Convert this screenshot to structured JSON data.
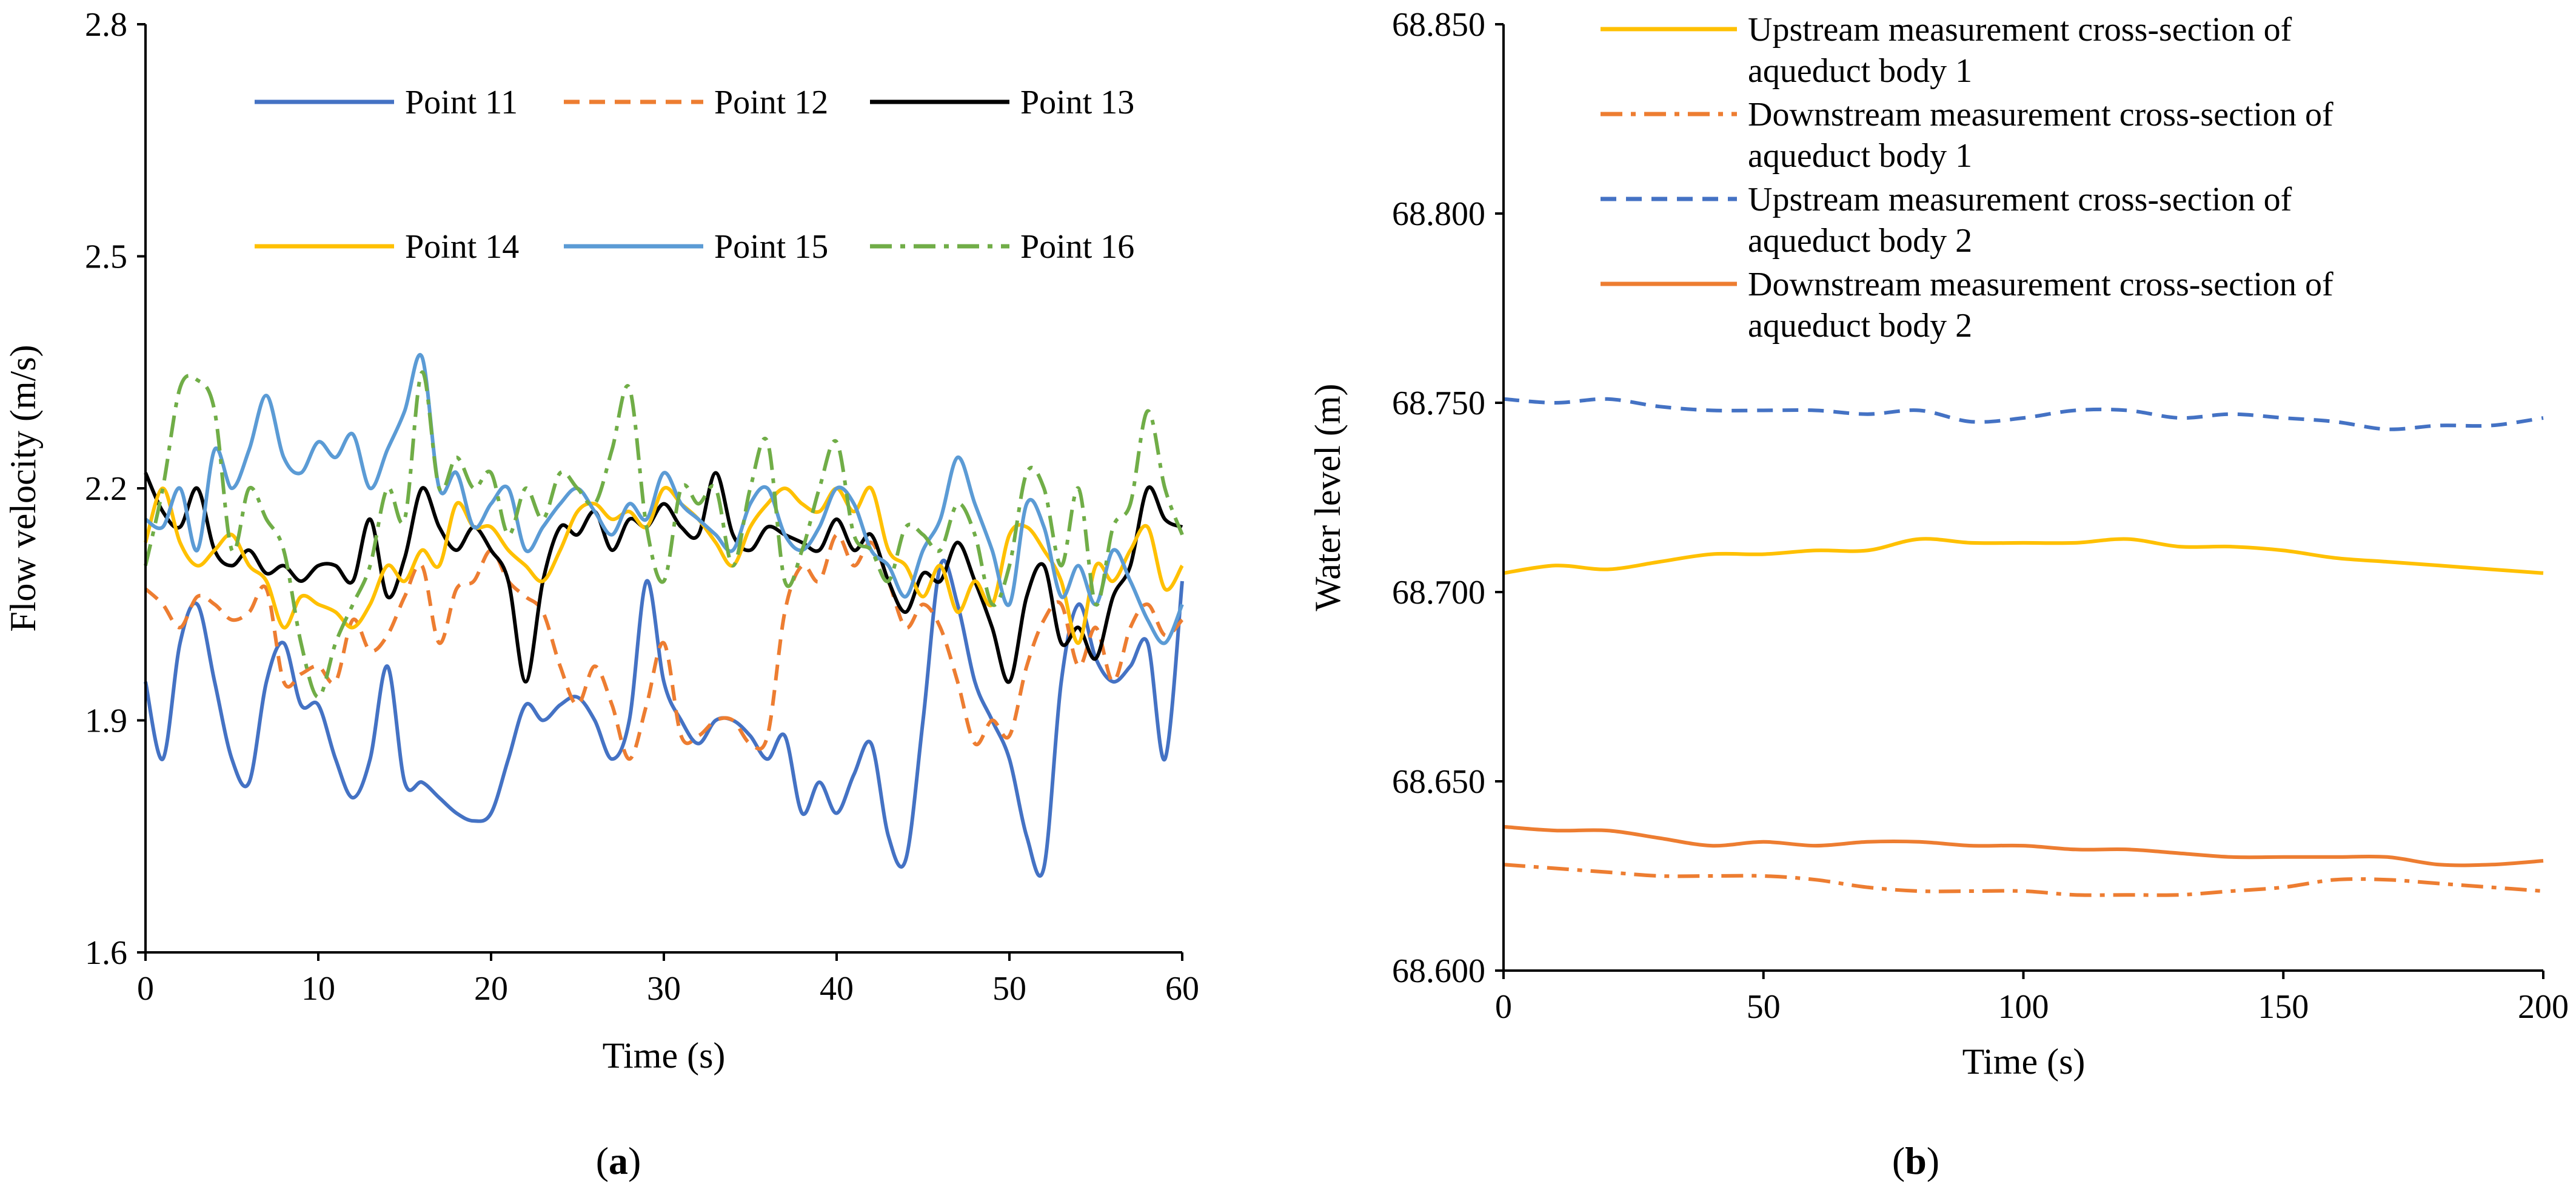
{
  "chart_data": [
    {
      "id": "a",
      "type": "line",
      "panel_label_open": "(",
      "panel_label_letter": "a",
      "panel_label_close": ")",
      "xlabel": "Time (s)",
      "ylabel": "Flow velocity (m/s)",
      "xlim": [
        0,
        60
      ],
      "ylim": [
        1.6,
        2.8
      ],
      "xticks": [
        0,
        10,
        20,
        30,
        40,
        50,
        60
      ],
      "xtick_labels": [
        "0",
        "10",
        "20",
        "30",
        "40",
        "50",
        "60"
      ],
      "yticks": [
        1.6,
        1.9,
        2.2,
        2.5,
        2.8
      ],
      "ytick_labels": [
        "1.6",
        "1.9",
        "2.2",
        "2.5",
        "2.8"
      ],
      "grid": false,
      "legend_position": "top",
      "series": [
        {
          "name": "Point 11",
          "color": "#4472C4",
          "dash": "solid",
          "x": [
            0,
            1,
            2,
            3,
            4,
            5,
            6,
            7,
            8,
            9,
            10,
            11,
            12,
            13,
            14,
            15,
            16,
            17,
            18,
            19,
            20,
            21,
            22,
            23,
            24,
            25,
            26,
            27,
            28,
            29,
            30,
            31,
            32,
            33,
            34,
            35,
            36,
            37,
            38,
            39,
            40,
            41,
            42,
            43,
            44,
            45,
            46,
            47,
            48,
            49,
            50,
            51,
            52,
            53,
            54,
            55,
            56,
            57,
            58,
            59,
            60
          ],
          "values": [
            1.95,
            1.85,
            2.0,
            2.05,
            1.95,
            1.85,
            1.82,
            1.95,
            2.0,
            1.92,
            1.92,
            1.85,
            1.8,
            1.85,
            1.97,
            1.82,
            1.82,
            1.8,
            1.78,
            1.77,
            1.78,
            1.85,
            1.92,
            1.9,
            1.92,
            1.93,
            1.9,
            1.85,
            1.9,
            2.08,
            1.95,
            1.9,
            1.87,
            1.9,
            1.9,
            1.88,
            1.85,
            1.88,
            1.78,
            1.82,
            1.78,
            1.83,
            1.87,
            1.75,
            1.72,
            1.9,
            2.1,
            2.05,
            1.95,
            1.9,
            1.85,
            1.75,
            1.71,
            1.95,
            2.05,
            1.98,
            1.95,
            1.97,
            2.0,
            1.85,
            2.08
          ]
        },
        {
          "name": "Point 12",
          "color": "#ED7D31",
          "dash": "dashed",
          "x": [
            0,
            1,
            2,
            3,
            4,
            5,
            6,
            7,
            8,
            9,
            10,
            11,
            12,
            13,
            14,
            15,
            16,
            17,
            18,
            19,
            20,
            21,
            22,
            23,
            24,
            25,
            26,
            27,
            28,
            29,
            30,
            31,
            32,
            33,
            34,
            35,
            36,
            37,
            38,
            39,
            40,
            41,
            42,
            43,
            44,
            45,
            46,
            47,
            48,
            49,
            50,
            51,
            52,
            53,
            54,
            55,
            56,
            57,
            58,
            59,
            60
          ],
          "values": [
            2.07,
            2.05,
            2.02,
            2.06,
            2.05,
            2.03,
            2.04,
            2.07,
            1.95,
            1.96,
            1.97,
            1.95,
            2.03,
            1.99,
            2.01,
            2.06,
            2.1,
            2.0,
            2.07,
            2.08,
            2.12,
            2.08,
            2.06,
            2.04,
            1.97,
            1.92,
            1.97,
            1.92,
            1.85,
            1.92,
            2.0,
            1.88,
            1.88,
            1.9,
            1.9,
            1.87,
            1.88,
            2.04,
            2.1,
            2.08,
            2.14,
            2.1,
            2.13,
            2.08,
            2.02,
            2.05,
            2.02,
            1.95,
            1.87,
            1.9,
            1.88,
            1.97,
            2.03,
            2.05,
            1.97,
            2.02,
            1.95,
            2.02,
            2.05,
            2.01,
            2.03
          ]
        },
        {
          "name": "Point 13",
          "color": "#000000",
          "dash": "solid",
          "x": [
            0,
            1,
            2,
            3,
            4,
            5,
            6,
            7,
            8,
            9,
            10,
            11,
            12,
            13,
            14,
            15,
            16,
            17,
            18,
            19,
            20,
            21,
            22,
            23,
            24,
            25,
            26,
            27,
            28,
            29,
            30,
            31,
            32,
            33,
            34,
            35,
            36,
            37,
            38,
            39,
            40,
            41,
            42,
            43,
            44,
            45,
            46,
            47,
            48,
            49,
            50,
            51,
            52,
            53,
            54,
            55,
            56,
            57,
            58,
            59,
            60
          ],
          "values": [
            2.22,
            2.17,
            2.15,
            2.2,
            2.12,
            2.1,
            2.12,
            2.09,
            2.1,
            2.08,
            2.1,
            2.1,
            2.08,
            2.16,
            2.06,
            2.11,
            2.2,
            2.15,
            2.12,
            2.15,
            2.12,
            2.08,
            1.95,
            2.08,
            2.15,
            2.14,
            2.17,
            2.12,
            2.16,
            2.15,
            2.18,
            2.15,
            2.14,
            2.22,
            2.14,
            2.12,
            2.15,
            2.14,
            2.13,
            2.12,
            2.16,
            2.12,
            2.14,
            2.08,
            2.04,
            2.09,
            2.08,
            2.13,
            2.08,
            2.02,
            1.95,
            2.06,
            2.1,
            2.0,
            2.02,
            1.98,
            2.06,
            2.1,
            2.2,
            2.16,
            2.15
          ]
        },
        {
          "name": "Point 14",
          "color": "#FFC000",
          "dash": "solid",
          "x": [
            0,
            1,
            2,
            3,
            4,
            5,
            6,
            7,
            8,
            9,
            10,
            11,
            12,
            13,
            14,
            15,
            16,
            17,
            18,
            19,
            20,
            21,
            22,
            23,
            24,
            25,
            26,
            27,
            28,
            29,
            30,
            31,
            32,
            33,
            34,
            35,
            36,
            37,
            38,
            39,
            40,
            41,
            42,
            43,
            44,
            45,
            46,
            47,
            48,
            49,
            50,
            51,
            52,
            53,
            54,
            55,
            56,
            57,
            58,
            59,
            60
          ],
          "values": [
            2.13,
            2.2,
            2.13,
            2.1,
            2.12,
            2.14,
            2.1,
            2.08,
            2.02,
            2.06,
            2.05,
            2.04,
            2.02,
            2.05,
            2.1,
            2.08,
            2.12,
            2.1,
            2.18,
            2.15,
            2.15,
            2.12,
            2.1,
            2.08,
            2.12,
            2.17,
            2.18,
            2.16,
            2.17,
            2.15,
            2.2,
            2.18,
            2.16,
            2.13,
            2.1,
            2.15,
            2.18,
            2.2,
            2.18,
            2.17,
            2.2,
            2.17,
            2.2,
            2.12,
            2.1,
            2.06,
            2.1,
            2.04,
            2.08,
            2.05,
            2.14,
            2.15,
            2.12,
            2.08,
            2.0,
            2.1,
            2.08,
            2.12,
            2.15,
            2.07,
            2.1
          ]
        },
        {
          "name": "Point 15",
          "color": "#5B9BD5",
          "dash": "solid",
          "x": [
            0,
            1,
            2,
            3,
            4,
            5,
            6,
            7,
            8,
            9,
            10,
            11,
            12,
            13,
            14,
            15,
            16,
            17,
            18,
            19,
            20,
            21,
            22,
            23,
            24,
            25,
            26,
            27,
            28,
            29,
            30,
            31,
            32,
            33,
            34,
            35,
            36,
            37,
            38,
            39,
            40,
            41,
            42,
            43,
            44,
            45,
            46,
            47,
            48,
            49,
            50,
            51,
            52,
            53,
            54,
            55,
            56,
            57,
            58,
            59,
            60
          ],
          "values": [
            2.16,
            2.15,
            2.2,
            2.12,
            2.25,
            2.2,
            2.25,
            2.32,
            2.24,
            2.22,
            2.26,
            2.24,
            2.27,
            2.2,
            2.25,
            2.3,
            2.37,
            2.2,
            2.22,
            2.15,
            2.18,
            2.2,
            2.12,
            2.15,
            2.18,
            2.2,
            2.17,
            2.14,
            2.18,
            2.16,
            2.22,
            2.18,
            2.16,
            2.14,
            2.12,
            2.18,
            2.2,
            2.14,
            2.12,
            2.15,
            2.2,
            2.18,
            2.12,
            2.1,
            2.06,
            2.12,
            2.16,
            2.24,
            2.18,
            2.12,
            2.05,
            2.18,
            2.15,
            2.06,
            2.1,
            2.05,
            2.12,
            2.08,
            2.03,
            2.0,
            2.05
          ]
        },
        {
          "name": "Point 16",
          "color": "#70AD47",
          "dash": "dashdot",
          "x": [
            0,
            1,
            2,
            3,
            4,
            5,
            6,
            7,
            8,
            9,
            10,
            11,
            12,
            13,
            14,
            15,
            16,
            17,
            18,
            19,
            20,
            21,
            22,
            23,
            24,
            25,
            26,
            27,
            28,
            29,
            30,
            31,
            32,
            33,
            34,
            35,
            36,
            37,
            38,
            39,
            40,
            41,
            42,
            43,
            44,
            45,
            46,
            47,
            48,
            49,
            50,
            51,
            52,
            53,
            54,
            55,
            56,
            57,
            58,
            59,
            60
          ],
          "values": [
            2.1,
            2.2,
            2.33,
            2.34,
            2.3,
            2.12,
            2.2,
            2.16,
            2.12,
            2.0,
            1.93,
            2.0,
            2.05,
            2.1,
            2.2,
            2.16,
            2.35,
            2.2,
            2.24,
            2.2,
            2.22,
            2.14,
            2.2,
            2.16,
            2.22,
            2.2,
            2.18,
            2.25,
            2.33,
            2.15,
            2.08,
            2.2,
            2.18,
            2.2,
            2.1,
            2.2,
            2.26,
            2.08,
            2.12,
            2.2,
            2.26,
            2.14,
            2.12,
            2.08,
            2.15,
            2.14,
            2.12,
            2.18,
            2.14,
            2.05,
            2.1,
            2.22,
            2.2,
            2.1,
            2.2,
            2.05,
            2.15,
            2.18,
            2.3,
            2.2,
            2.14
          ]
        }
      ]
    },
    {
      "id": "b",
      "type": "line",
      "panel_label_open": "(",
      "panel_label_letter": "b",
      "panel_label_close": ")",
      "xlabel": "Time (s)",
      "ylabel": "Water level (m)",
      "xlim": [
        0,
        200
      ],
      "ylim": [
        68.6,
        68.85
      ],
      "xticks": [
        0,
        50,
        100,
        150,
        200
      ],
      "xtick_labels": [
        "0",
        "50",
        "100",
        "150",
        "200"
      ],
      "yticks": [
        68.6,
        68.65,
        68.7,
        68.75,
        68.8,
        68.85
      ],
      "ytick_labels": [
        "68.600",
        "68.650",
        "68.700",
        "68.750",
        "68.800",
        "68.850"
      ],
      "grid": false,
      "legend_position": "top",
      "series": [
        {
          "name_line1": "Upstream measurement cross-section of",
          "name_line2": "aqueduct body 1",
          "color": "#FFC000",
          "dash": "solid",
          "x": [
            0,
            10,
            20,
            30,
            40,
            50,
            60,
            70,
            80,
            90,
            100,
            110,
            120,
            130,
            140,
            150,
            160,
            170,
            180,
            190,
            200
          ],
          "values": [
            68.705,
            68.707,
            68.706,
            68.708,
            68.71,
            68.71,
            68.711,
            68.711,
            68.714,
            68.713,
            68.713,
            68.713,
            68.714,
            68.712,
            68.712,
            68.711,
            68.709,
            68.708,
            68.707,
            68.706,
            68.705
          ]
        },
        {
          "name_line1": "Downstream measurement cross-section of",
          "name_line2": "aqueduct body 1",
          "color": "#ED7D31",
          "dash": "dashdot",
          "x": [
            0,
            10,
            20,
            30,
            40,
            50,
            60,
            70,
            80,
            90,
            100,
            110,
            120,
            130,
            140,
            150,
            160,
            170,
            180,
            190,
            200
          ],
          "values": [
            68.628,
            68.627,
            68.626,
            68.625,
            68.625,
            68.625,
            68.624,
            68.622,
            68.621,
            68.621,
            68.621,
            68.62,
            68.62,
            68.62,
            68.621,
            68.622,
            68.624,
            68.624,
            68.623,
            68.622,
            68.621
          ]
        },
        {
          "name_line1": "Upstream measurement cross-section of",
          "name_line2": "aqueduct body 2",
          "color": "#4472C4",
          "dash": "dashed",
          "x": [
            0,
            10,
            20,
            30,
            40,
            50,
            60,
            70,
            80,
            90,
            100,
            110,
            120,
            130,
            140,
            150,
            160,
            170,
            180,
            190,
            200
          ],
          "values": [
            68.751,
            68.75,
            68.751,
            68.749,
            68.748,
            68.748,
            68.748,
            68.747,
            68.748,
            68.745,
            68.746,
            68.748,
            68.748,
            68.746,
            68.747,
            68.746,
            68.745,
            68.743,
            68.744,
            68.744,
            68.746
          ]
        },
        {
          "name_line1": "Downstream measurement cross-section of",
          "name_line2": "aqueduct body 2",
          "color": "#ED7D31",
          "dash": "solid",
          "x": [
            0,
            10,
            20,
            30,
            40,
            50,
            60,
            70,
            80,
            90,
            100,
            110,
            120,
            130,
            140,
            150,
            160,
            170,
            180,
            190,
            200
          ],
          "values": [
            68.638,
            68.637,
            68.637,
            68.635,
            68.633,
            68.634,
            68.633,
            68.634,
            68.634,
            68.633,
            68.633,
            68.632,
            68.632,
            68.631,
            68.63,
            68.63,
            68.63,
            68.63,
            68.628,
            68.628,
            68.629
          ]
        }
      ]
    }
  ]
}
